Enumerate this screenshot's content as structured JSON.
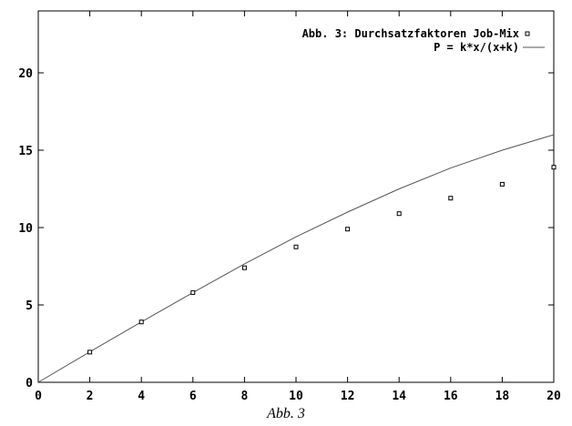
{
  "caption": "Abb. 3",
  "chart_data": {
    "type": "scatter",
    "title": "",
    "xlabel": "",
    "ylabel": "",
    "xlim": [
      0,
      20
    ],
    "ylim": [
      0,
      24
    ],
    "xticks": [
      "0",
      "2",
      "4",
      "6",
      "8",
      "10",
      "12",
      "14",
      "16",
      "18",
      "20"
    ],
    "yticks": [
      "0",
      "5",
      "10",
      "15",
      "20"
    ],
    "grid": false,
    "legend_position": "top-right",
    "series": [
      {
        "name": "Abb. 3: Durchsatzfaktoren Job-Mix",
        "kind": "points",
        "marker": "square",
        "x": [
          2,
          4,
          6,
          8,
          10,
          12,
          14,
          16,
          18,
          20
        ],
        "y": [
          1.95,
          3.9,
          5.8,
          7.4,
          8.75,
          9.9,
          10.9,
          11.9,
          12.8,
          13.9
        ]
      },
      {
        "name": "P = k*x/(x+k)",
        "kind": "line",
        "x": [
          0,
          2,
          4,
          6,
          8,
          10,
          12,
          14,
          16,
          18,
          20
        ],
        "y": [
          0,
          1.97,
          3.9,
          5.8,
          7.65,
          9.4,
          11.0,
          12.5,
          13.85,
          15.0,
          16.0
        ]
      }
    ]
  }
}
